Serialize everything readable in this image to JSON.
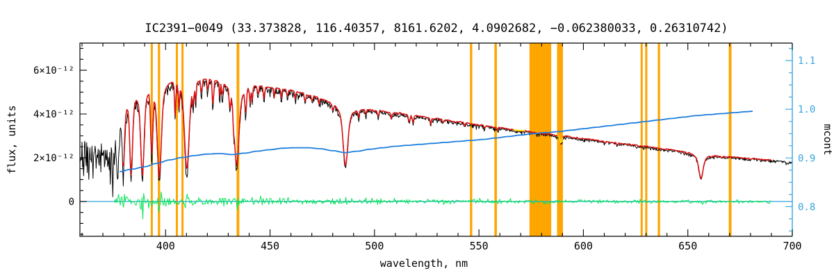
{
  "chart_data": {
    "type": "line",
    "title": "IC2391−0049  (33.373828, 116.40357, 8161.6202, 4.0902682, −0.062380033, 0.26310742)",
    "xlabel": "wavelength, nm",
    "ylabel_left": "flux, units",
    "ylabel_right": "mcont",
    "x_range": [
      359,
      700
    ],
    "x_major_ticks": [
      400,
      450,
      500,
      550,
      600,
      650,
      700
    ],
    "x_minor_step": 10,
    "flux_unit": "1e-12",
    "flux_range": [
      -1.59,
      7.24
    ],
    "flux_ticks": [
      {
        "v": 0,
        "label": "0"
      },
      {
        "v": 2,
        "label": "2×10⁻¹²"
      },
      {
        "v": 4,
        "label": "4×10⁻¹²"
      },
      {
        "v": 6,
        "label": "6×10⁻¹²"
      }
    ],
    "mcont_range": [
      0.739,
      1.136
    ],
    "mcont_ticks": [
      0.8,
      0.9,
      1.0,
      1.1
    ],
    "grid": false,
    "legend": "none",
    "colors": {
      "observed": "#000000",
      "model": "#d91111",
      "mcont": "#1b7ddd",
      "right_axis": "#35a3dd",
      "residual": "#00e553",
      "mask": "#ffa500",
      "zero_line": "#35a3dd",
      "masked_segment": "#ffe000",
      "frame": "#000000",
      "background": "#ffffff"
    },
    "masked_regions_nm": [
      [
        392.9,
        393.9
      ],
      [
        396.3,
        397.4
      ],
      [
        404.9,
        405.9
      ],
      [
        407.6,
        408.6
      ],
      [
        434.0,
        435.3
      ],
      [
        545.7,
        546.8
      ],
      [
        557.4,
        558.6
      ],
      [
        574.2,
        584.6
      ],
      [
        587.4,
        590.2
      ],
      [
        627.4,
        628.4
      ],
      [
        629.6,
        630.6
      ],
      [
        635.6,
        636.7
      ],
      [
        669.6,
        670.9
      ]
    ],
    "yellow_segments_nm": [
      [
        566.5,
        572.0
      ],
      [
        587.6,
        590.4
      ]
    ],
    "series": {
      "observed": {
        "name": "observed spectrum",
        "range_nm": [
          359,
          700
        ]
      },
      "model": {
        "name": "fitted model spectrum",
        "range_nm": [
          379.5,
          690
        ]
      },
      "residual": {
        "name": "fit residual",
        "range_nm": [
          375.5,
          690
        ]
      },
      "zero_line": {
        "flux": 0
      },
      "mcont": {
        "name": "mcont",
        "axis": "right",
        "range_nm": [
          378,
          681
        ],
        "points": [
          [
            378,
            0.872
          ],
          [
            384,
            0.877
          ],
          [
            390,
            0.882
          ],
          [
            396,
            0.889
          ],
          [
            402,
            0.896
          ],
          [
            408,
            0.901
          ],
          [
            414,
            0.905
          ],
          [
            420,
            0.908
          ],
          [
            426,
            0.909
          ],
          [
            432,
            0.907
          ],
          [
            438,
            0.91
          ],
          [
            444,
            0.914
          ],
          [
            450,
            0.917
          ],
          [
            456,
            0.92
          ],
          [
            462,
            0.921
          ],
          [
            468,
            0.921
          ],
          [
            474,
            0.919
          ],
          [
            480,
            0.915
          ],
          [
            486,
            0.911
          ],
          [
            492,
            0.914
          ],
          [
            498,
            0.918
          ],
          [
            504,
            0.921
          ],
          [
            510,
            0.924
          ],
          [
            516,
            0.926
          ],
          [
            522,
            0.928
          ],
          [
            528,
            0.93
          ],
          [
            534,
            0.932
          ],
          [
            540,
            0.934
          ],
          [
            546,
            0.936
          ],
          [
            552,
            0.938
          ],
          [
            558,
            0.941
          ],
          [
            564,
            0.944
          ],
          [
            570,
            0.947
          ],
          [
            576,
            0.95
          ],
          [
            582,
            0.952
          ],
          [
            588,
            0.954
          ],
          [
            594,
            0.957
          ],
          [
            600,
            0.96
          ],
          [
            606,
            0.963
          ],
          [
            612,
            0.966
          ],
          [
            618,
            0.969
          ],
          [
            624,
            0.972
          ],
          [
            630,
            0.975
          ],
          [
            636,
            0.978
          ],
          [
            642,
            0.981
          ],
          [
            648,
            0.984
          ],
          [
            654,
            0.987
          ],
          [
            660,
            0.989
          ],
          [
            666,
            0.991
          ],
          [
            672,
            0.993
          ],
          [
            678,
            0.995
          ],
          [
            681,
            0.996
          ]
        ]
      }
    },
    "continuum_points": [
      [
        376,
        3.2
      ],
      [
        378,
        4.4
      ],
      [
        380,
        5.25
      ],
      [
        383,
        5.6
      ],
      [
        386,
        5.7
      ],
      [
        390,
        5.8
      ],
      [
        395,
        5.88
      ],
      [
        400,
        5.93
      ],
      [
        405,
        5.92
      ],
      [
        410,
        5.9
      ],
      [
        415,
        5.85
      ],
      [
        420,
        5.78
      ],
      [
        425,
        5.68
      ],
      [
        430,
        5.6
      ],
      [
        435,
        5.52
      ],
      [
        440,
        5.45
      ],
      [
        445,
        5.35
      ],
      [
        450,
        5.25
      ],
      [
        455,
        5.18
      ],
      [
        460,
        5.1
      ],
      [
        465,
        4.98
      ],
      [
        470,
        4.86
      ],
      [
        475,
        4.74
      ],
      [
        480,
        4.62
      ],
      [
        485,
        4.5
      ],
      [
        490,
        4.38
      ],
      [
        495,
        4.28
      ],
      [
        500,
        4.2
      ],
      [
        510,
        4.05
      ],
      [
        520,
        3.92
      ],
      [
        530,
        3.78
      ],
      [
        540,
        3.64
      ],
      [
        550,
        3.5
      ],
      [
        560,
        3.37
      ],
      [
        570,
        3.24
      ],
      [
        580,
        3.11
      ],
      [
        590,
        2.99
      ],
      [
        600,
        2.87
      ],
      [
        610,
        2.75
      ],
      [
        620,
        2.63
      ],
      [
        630,
        2.51
      ],
      [
        640,
        2.4
      ],
      [
        650,
        2.28
      ],
      [
        660,
        2.15
      ],
      [
        670,
        2.05
      ],
      [
        680,
        1.97
      ],
      [
        690,
        1.89
      ],
      [
        700,
        1.82
      ]
    ],
    "absorption_lines": [
      [
        656.28,
        0.52,
        0.9,
        1
      ],
      [
        486.13,
        0.64,
        1.0,
        1
      ],
      [
        434.05,
        0.7,
        1.0,
        1
      ],
      [
        410.17,
        0.74,
        1.0,
        1
      ],
      [
        397.01,
        0.78,
        0.9,
        1
      ],
      [
        393.37,
        0.5,
        0.5,
        0
      ],
      [
        388.9,
        0.74,
        0.75,
        1
      ],
      [
        383.54,
        0.7,
        0.6,
        1
      ],
      [
        379.79,
        0.62,
        0.5,
        1
      ],
      [
        377.06,
        0.55,
        0.45,
        1
      ],
      [
        375.0,
        0.5,
        0.4,
        1
      ],
      [
        404.58,
        0.26,
        0.3,
        0
      ],
      [
        406.4,
        0.18,
        0.25,
        0
      ],
      [
        413.2,
        0.16,
        0.25,
        0
      ],
      [
        414.4,
        0.15,
        0.25,
        0
      ],
      [
        417.2,
        0.13,
        0.25,
        0
      ],
      [
        420.2,
        0.11,
        0.25,
        0
      ],
      [
        422.67,
        0.22,
        0.3,
        0
      ],
      [
        426.0,
        0.12,
        0.25,
        0
      ],
      [
        427.2,
        0.13,
        0.25,
        0
      ],
      [
        430.8,
        0.16,
        0.3,
        0
      ],
      [
        432.6,
        0.12,
        0.25,
        0
      ],
      [
        438.35,
        0.2,
        0.35,
        0
      ],
      [
        440.5,
        0.14,
        0.3,
        0
      ],
      [
        441.5,
        0.11,
        0.25,
        0
      ],
      [
        444.3,
        0.09,
        0.25,
        0
      ],
      [
        447.1,
        0.11,
        0.3,
        0
      ],
      [
        452.0,
        0.08,
        0.25,
        0
      ],
      [
        455.4,
        0.09,
        0.25,
        0
      ],
      [
        458.3,
        0.07,
        0.25,
        0
      ],
      [
        462.1,
        0.07,
        0.25,
        0
      ],
      [
        466.8,
        0.08,
        0.3,
        0
      ],
      [
        470.2,
        0.06,
        0.25,
        0
      ],
      [
        473.5,
        0.06,
        0.25,
        0
      ],
      [
        480.1,
        0.07,
        0.3,
        0
      ],
      [
        492.4,
        0.08,
        0.3,
        0
      ],
      [
        495.8,
        0.06,
        0.25,
        0
      ],
      [
        501.8,
        0.07,
        0.3,
        0
      ],
      [
        508.1,
        0.06,
        0.25,
        0
      ],
      [
        516.7,
        0.09,
        0.35,
        0
      ],
      [
        518.4,
        0.09,
        0.3,
        0
      ],
      [
        526.9,
        0.07,
        0.3,
        0
      ],
      [
        532.8,
        0.05,
        0.25,
        0
      ],
      [
        543.1,
        0.05,
        0.25,
        0
      ],
      [
        552.7,
        0.04,
        0.25,
        0
      ],
      [
        558.9,
        0.04,
        0.25,
        0
      ],
      [
        589.0,
        0.09,
        0.3,
        0
      ],
      [
        589.6,
        0.07,
        0.3,
        0
      ],
      [
        610.3,
        0.04,
        0.25,
        0
      ],
      [
        616.2,
        0.04,
        0.3,
        0
      ],
      [
        623.1,
        0.03,
        0.25,
        0
      ],
      [
        649.7,
        0.03,
        0.25,
        0
      ],
      [
        666.2,
        0.03,
        0.25,
        0
      ]
    ],
    "noise": {
      "observed_amp": [
        0.22,
        70,
        0.05
      ],
      "residual_amp": [
        0.115,
        95,
        0.032
      ],
      "blue_block_level": 2.15,
      "blue_block_scatter": 0.4
    }
  }
}
